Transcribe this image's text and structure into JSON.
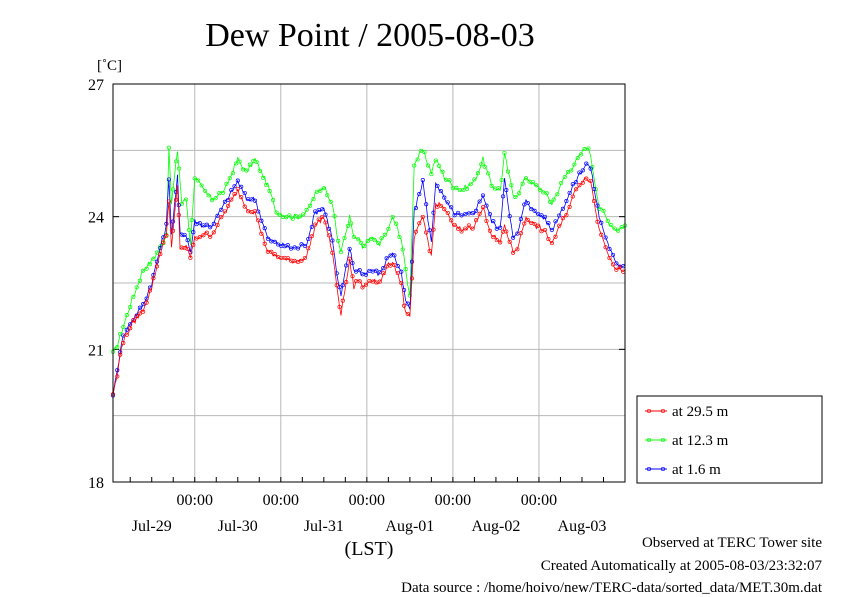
{
  "chart_data": {
    "type": "line",
    "title": "Dew Point / 2005-08-03",
    "ylabel": "[˚C]",
    "xlabel": "(LST)",
    "ylim": [
      18,
      27
    ],
    "yticks": [
      18,
      21,
      24,
      27
    ],
    "xlim_days": [
      -0.95,
      5.0
    ],
    "x_time_ticks": [
      {
        "day": 0,
        "label": "00:00"
      },
      {
        "day": 1,
        "label": "00:00"
      },
      {
        "day": 2,
        "label": "00:00"
      },
      {
        "day": 3,
        "label": "00:00"
      },
      {
        "day": 4,
        "label": "00:00"
      }
    ],
    "x_date_labels": [
      {
        "day": -0.5,
        "label": "Jul-29"
      },
      {
        "day": 0.5,
        "label": "Jul-30"
      },
      {
        "day": 1.5,
        "label": "Jul-31"
      },
      {
        "day": 2.5,
        "label": "Aug-01"
      },
      {
        "day": 3.5,
        "label": "Aug-02"
      },
      {
        "day": 4.5,
        "label": "Aug-03"
      }
    ],
    "grid": true,
    "legend_position": "bottom-right",
    "series": [
      {
        "name": "at 29.5 m",
        "color": "#ff0000",
        "points": [
          [
            -0.95,
            20
          ],
          [
            -0.9,
            20.4
          ],
          [
            -0.85,
            21.1
          ],
          [
            -0.75,
            21.5
          ],
          [
            -0.6,
            21.9
          ],
          [
            -0.5,
            22.4
          ],
          [
            -0.4,
            23.2
          ],
          [
            -0.33,
            23.6
          ],
          [
            -0.3,
            24.4
          ],
          [
            -0.27,
            23.3
          ],
          [
            -0.2,
            24.7
          ],
          [
            -0.17,
            23.3
          ],
          [
            -0.1,
            23.3
          ],
          [
            -0.05,
            23.1
          ],
          [
            0,
            23.5
          ],
          [
            0.1,
            23.6
          ],
          [
            0.2,
            23.6
          ],
          [
            0.35,
            24.1
          ],
          [
            0.5,
            24.6
          ],
          [
            0.6,
            24.2
          ],
          [
            0.7,
            24.1
          ],
          [
            0.85,
            23.2
          ],
          [
            0.95,
            23.1
          ],
          [
            1.1,
            23
          ],
          [
            1.2,
            23
          ],
          [
            1.3,
            23.1
          ],
          [
            1.4,
            23.8
          ],
          [
            1.5,
            24
          ],
          [
            1.6,
            23.2
          ],
          [
            1.65,
            22.4
          ],
          [
            1.7,
            21.8
          ],
          [
            1.8,
            23
          ],
          [
            1.85,
            22.4
          ],
          [
            1.9,
            22.6
          ],
          [
            1.95,
            22.4
          ],
          [
            2.05,
            22.6
          ],
          [
            2.15,
            22.5
          ],
          [
            2.25,
            22.9
          ],
          [
            2.3,
            23
          ],
          [
            2.4,
            22.5
          ],
          [
            2.45,
            21.8
          ],
          [
            2.5,
            21.7
          ],
          [
            2.55,
            23.5
          ],
          [
            2.65,
            24
          ],
          [
            2.75,
            23.1
          ],
          [
            2.8,
            24.3
          ],
          [
            2.9,
            24.2
          ],
          [
            3.0,
            23.8
          ],
          [
            3.1,
            23.7
          ],
          [
            3.25,
            23.8
          ],
          [
            3.35,
            24.2
          ],
          [
            3.45,
            23.6
          ],
          [
            3.55,
            23.4
          ],
          [
            3.6,
            23.8
          ],
          [
            3.7,
            23.2
          ],
          [
            3.75,
            23.3
          ],
          [
            3.85,
            24
          ],
          [
            3.95,
            23.8
          ],
          [
            4.05,
            23.7
          ],
          [
            4.15,
            23.4
          ],
          [
            4.3,
            24
          ],
          [
            4.45,
            24.7
          ],
          [
            4.55,
            24.9
          ],
          [
            4.6,
            24.8
          ],
          [
            4.7,
            23.7
          ],
          [
            4.75,
            23.5
          ],
          [
            4.8,
            23.2
          ],
          [
            4.9,
            22.8
          ],
          [
            5.0,
            22.8
          ]
        ]
      },
      {
        "name": "at 12.3 m",
        "color": "#00ff00",
        "points": [
          [
            -0.95,
            20.9
          ],
          [
            -0.9,
            21.1
          ],
          [
            -0.85,
            21.4
          ],
          [
            -0.75,
            22
          ],
          [
            -0.6,
            22.8
          ],
          [
            -0.5,
            23
          ],
          [
            -0.4,
            23.3
          ],
          [
            -0.33,
            23.6
          ],
          [
            -0.3,
            25.5
          ],
          [
            -0.27,
            24.3
          ],
          [
            -0.2,
            25.5
          ],
          [
            -0.15,
            24.3
          ],
          [
            -0.1,
            24.4
          ],
          [
            -0.05,
            23.4
          ],
          [
            0,
            24.9
          ],
          [
            0.1,
            24.6
          ],
          [
            0.2,
            24.4
          ],
          [
            0.35,
            24.6
          ],
          [
            0.5,
            25.3
          ],
          [
            0.6,
            25
          ],
          [
            0.7,
            25.3
          ],
          [
            0.85,
            24.7
          ],
          [
            0.95,
            24.1
          ],
          [
            1.1,
            24
          ],
          [
            1.2,
            24
          ],
          [
            1.3,
            24.1
          ],
          [
            1.4,
            24.5
          ],
          [
            1.5,
            24.7
          ],
          [
            1.6,
            24.3
          ],
          [
            1.65,
            23.6
          ],
          [
            1.7,
            23.2
          ],
          [
            1.8,
            24
          ],
          [
            1.85,
            23.5
          ],
          [
            1.9,
            23.5
          ],
          [
            1.95,
            23.3
          ],
          [
            2.05,
            23.5
          ],
          [
            2.15,
            23.4
          ],
          [
            2.25,
            23.7
          ],
          [
            2.3,
            24
          ],
          [
            2.4,
            23.5
          ],
          [
            2.45,
            22.8
          ],
          [
            2.5,
            22.2
          ],
          [
            2.55,
            25.2
          ],
          [
            2.65,
            25.5
          ],
          [
            2.75,
            25
          ],
          [
            2.8,
            25.3
          ],
          [
            2.9,
            24.9
          ],
          [
            3.0,
            24.7
          ],
          [
            3.1,
            24.6
          ],
          [
            3.25,
            24.8
          ],
          [
            3.35,
            25.3
          ],
          [
            3.45,
            24.7
          ],
          [
            3.55,
            24.6
          ],
          [
            3.6,
            25.4
          ],
          [
            3.7,
            24.5
          ],
          [
            3.75,
            24.5
          ],
          [
            3.85,
            24.9
          ],
          [
            3.95,
            24.7
          ],
          [
            4.05,
            24.6
          ],
          [
            4.15,
            24.3
          ],
          [
            4.3,
            24.9
          ],
          [
            4.45,
            25.3
          ],
          [
            4.55,
            25.6
          ],
          [
            4.6,
            25.4
          ],
          [
            4.7,
            24.2
          ],
          [
            4.75,
            24.1
          ],
          [
            4.8,
            23.9
          ],
          [
            4.9,
            23.7
          ],
          [
            5.0,
            23.8
          ]
        ]
      },
      {
        "name": "at 1.6 m",
        "color": "#0000ff",
        "points": [
          [
            -0.95,
            20
          ],
          [
            -0.9,
            20.5
          ],
          [
            -0.85,
            21.2
          ],
          [
            -0.75,
            21.6
          ],
          [
            -0.6,
            22
          ],
          [
            -0.5,
            22.5
          ],
          [
            -0.4,
            23.3
          ],
          [
            -0.33,
            23.8
          ],
          [
            -0.3,
            24.9
          ],
          [
            -0.27,
            23.6
          ],
          [
            -0.2,
            24.9
          ],
          [
            -0.17,
            23.6
          ],
          [
            -0.1,
            23.6
          ],
          [
            -0.05,
            23.2
          ],
          [
            0,
            23.9
          ],
          [
            0.1,
            23.8
          ],
          [
            0.2,
            23.8
          ],
          [
            0.35,
            24.3
          ],
          [
            0.5,
            24.8
          ],
          [
            0.6,
            24.4
          ],
          [
            0.7,
            24.4
          ],
          [
            0.85,
            23.5
          ],
          [
            0.95,
            23.4
          ],
          [
            1.1,
            23.3
          ],
          [
            1.2,
            23.3
          ],
          [
            1.3,
            23.4
          ],
          [
            1.4,
            24.1
          ],
          [
            1.5,
            24.2
          ],
          [
            1.6,
            23.5
          ],
          [
            1.65,
            22.7
          ],
          [
            1.7,
            22.2
          ],
          [
            1.8,
            23.3
          ],
          [
            1.85,
            22.8
          ],
          [
            1.9,
            22.8
          ],
          [
            1.95,
            22.7
          ],
          [
            2.05,
            22.8
          ],
          [
            2.15,
            22.7
          ],
          [
            2.25,
            23.1
          ],
          [
            2.3,
            23.2
          ],
          [
            2.4,
            22.7
          ],
          [
            2.45,
            22.1
          ],
          [
            2.5,
            21.9
          ],
          [
            2.55,
            24.1
          ],
          [
            2.65,
            24.8
          ],
          [
            2.75,
            23.4
          ],
          [
            2.8,
            24.8
          ],
          [
            2.9,
            24.4
          ],
          [
            3.0,
            24.1
          ],
          [
            3.1,
            24
          ],
          [
            3.25,
            24.1
          ],
          [
            3.35,
            24.5
          ],
          [
            3.45,
            23.9
          ],
          [
            3.55,
            23.7
          ],
          [
            3.6,
            24.9
          ],
          [
            3.7,
            23.5
          ],
          [
            3.75,
            23.6
          ],
          [
            3.85,
            24.4
          ],
          [
            3.95,
            24.1
          ],
          [
            4.05,
            24
          ],
          [
            4.15,
            23.7
          ],
          [
            4.3,
            24.3
          ],
          [
            4.45,
            24.9
          ],
          [
            4.55,
            25.2
          ],
          [
            4.6,
            25.1
          ],
          [
            4.7,
            24
          ],
          [
            4.75,
            23.7
          ],
          [
            4.8,
            23.4
          ],
          [
            4.9,
            22.9
          ],
          [
            5.0,
            22.9
          ]
        ]
      }
    ]
  },
  "footer": {
    "observed": "Observed at TERC Tower site",
    "created": "Created Automatically at 2005-08-03/23:32:07",
    "source": "Data source : /home/hoivo/new/TERC-data/sorted_data/MET.30m.dat"
  }
}
